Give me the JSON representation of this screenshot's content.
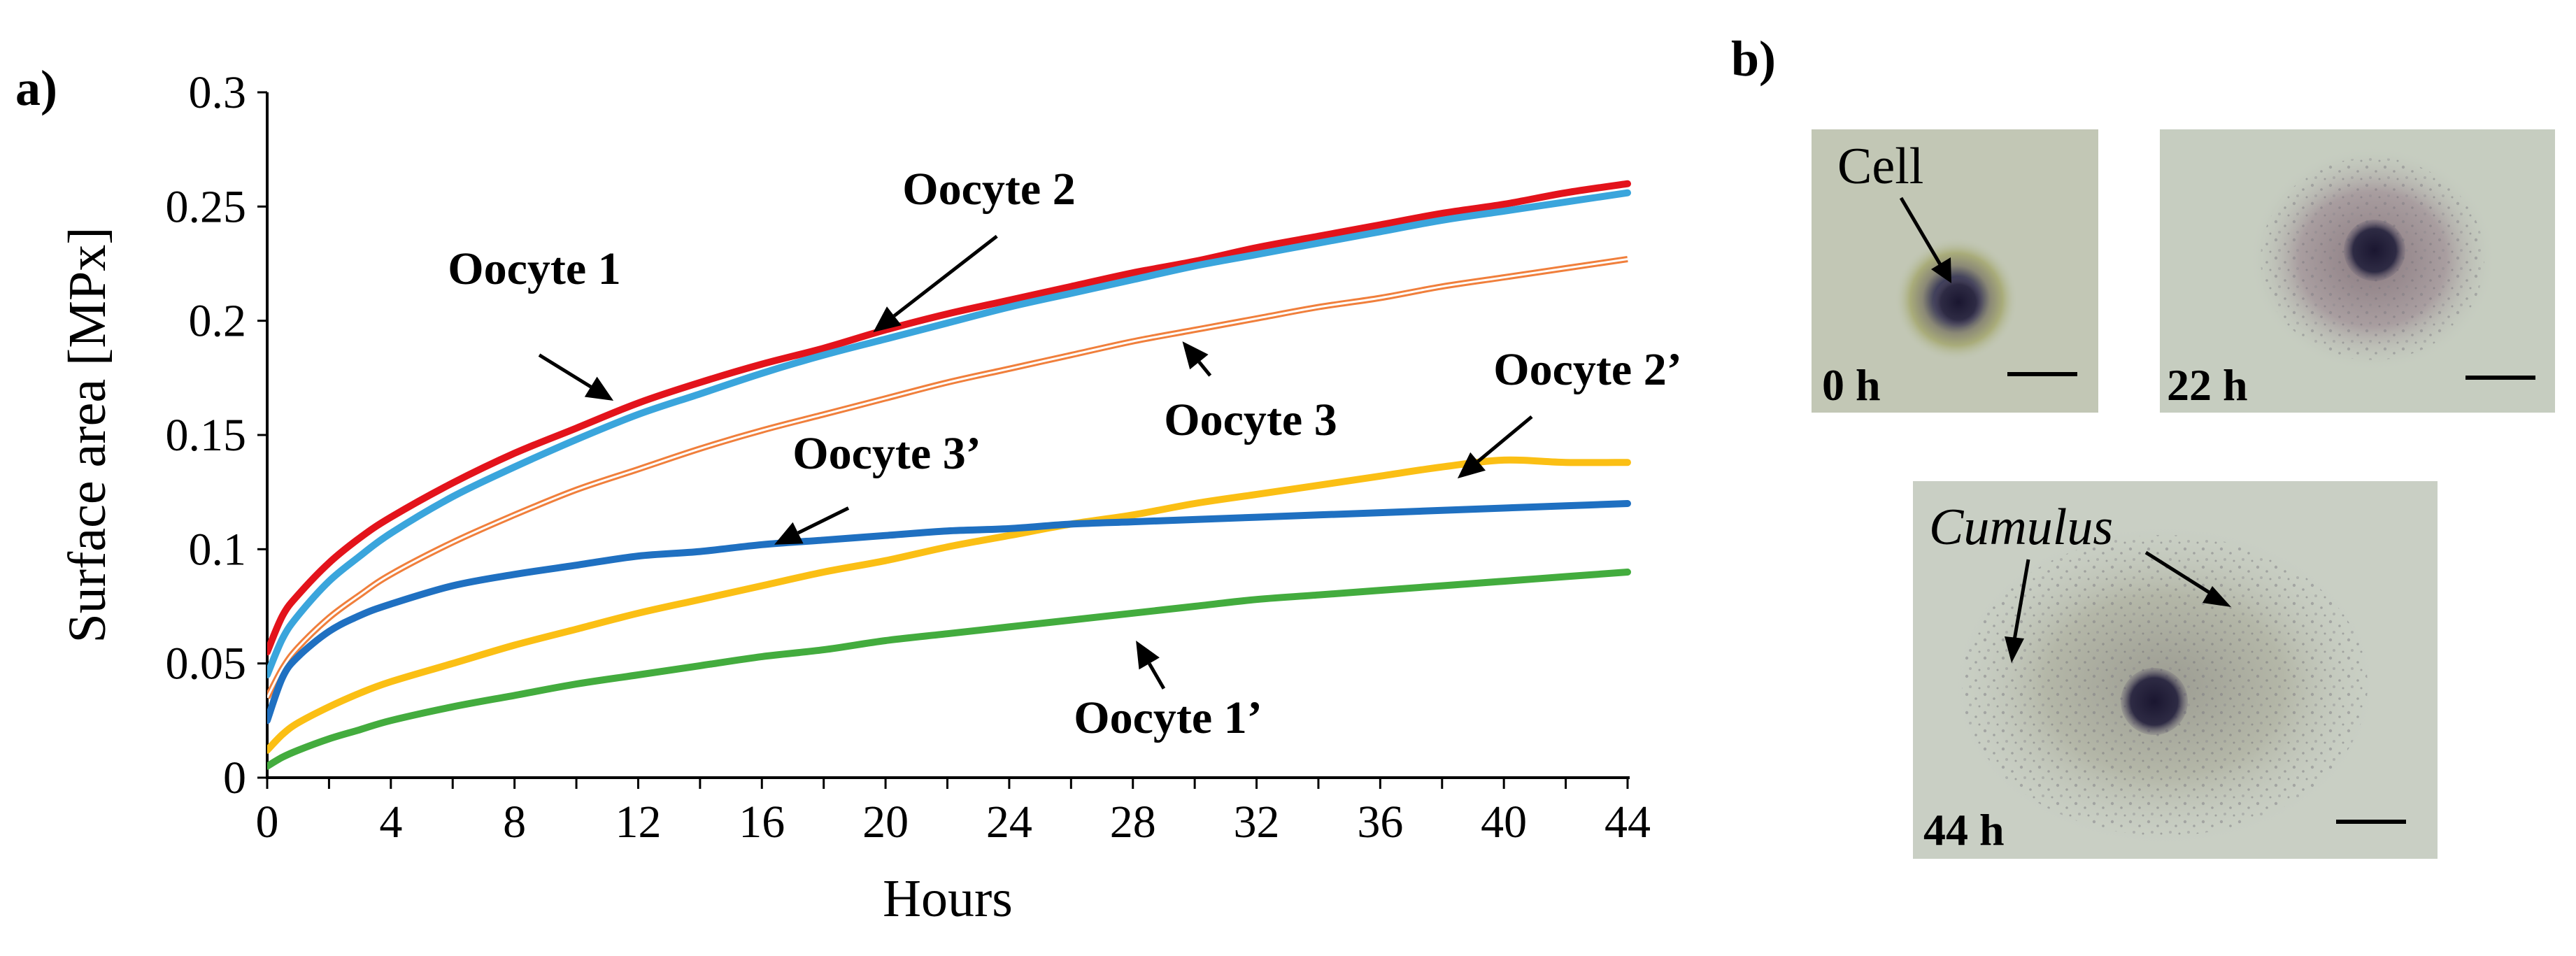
{
  "chart_data": {
    "type": "line",
    "panel_label": "a)",
    "xlabel": "Hours",
    "ylabel": "Surface area [MPx]",
    "xlim": [
      0,
      44
    ],
    "ylim": [
      0,
      0.3
    ],
    "x_ticks": [
      0,
      4,
      8,
      12,
      16,
      20,
      24,
      28,
      32,
      36,
      40,
      44
    ],
    "x_tick_labels": [
      "0",
      "4",
      "8",
      "12",
      "16",
      "20",
      "24",
      "28",
      "32",
      "36",
      "40",
      "44"
    ],
    "y_ticks": [
      0,
      0.05,
      0.1,
      0.15,
      0.2,
      0.25,
      0.3
    ],
    "y_tick_labels": [
      "0",
      "0.05",
      "0.1",
      "0.15",
      "0.2",
      "0.25",
      "0.3"
    ],
    "x": [
      0,
      0.5,
      1,
      2,
      3,
      4,
      6,
      8,
      10,
      12,
      14,
      16,
      18,
      20,
      22,
      24,
      26,
      28,
      30,
      32,
      34,
      36,
      38,
      40,
      42,
      44
    ],
    "series": [
      {
        "name": "Oocyte 1",
        "color": "#e3131b",
        "style": "solid",
        "values": [
          0.055,
          0.071,
          0.08,
          0.094,
          0.105,
          0.114,
          0.129,
          0.142,
          0.153,
          0.164,
          0.173,
          0.181,
          0.188,
          0.196,
          0.203,
          0.209,
          0.215,
          0.221,
          0.226,
          0.232,
          0.237,
          0.242,
          0.247,
          0.251,
          0.256,
          0.26
        ]
      },
      {
        "name": "Oocyte 2",
        "color": "#3aa5dc",
        "style": "solid",
        "values": [
          0.045,
          0.061,
          0.071,
          0.086,
          0.097,
          0.107,
          0.123,
          0.136,
          0.148,
          0.159,
          0.168,
          0.177,
          0.185,
          0.192,
          0.199,
          0.206,
          0.212,
          0.218,
          0.224,
          0.229,
          0.234,
          0.239,
          0.244,
          0.248,
          0.252,
          0.256
        ]
      },
      {
        "name": "Oocyte 3",
        "color": "#f07f3c",
        "style": "double",
        "values": [
          0.035,
          0.048,
          0.057,
          0.07,
          0.08,
          0.089,
          0.103,
          0.115,
          0.126,
          0.135,
          0.144,
          0.152,
          0.159,
          0.166,
          0.173,
          0.179,
          0.185,
          0.191,
          0.196,
          0.201,
          0.206,
          0.21,
          0.215,
          0.219,
          0.223,
          0.227
        ]
      },
      {
        "name": "Oocyte 2’",
        "color": "#fbbf14",
        "style": "solid",
        "values": [
          0.012,
          0.019,
          0.024,
          0.031,
          0.037,
          0.042,
          0.05,
          0.058,
          0.065,
          0.072,
          0.078,
          0.084,
          0.09,
          0.095,
          0.101,
          0.106,
          0.111,
          0.115,
          0.12,
          0.124,
          0.128,
          0.132,
          0.136,
          0.139,
          0.138,
          0.138
        ]
      },
      {
        "name": "Oocyte 3’",
        "color": "#1f70c1",
        "style": "solid",
        "values": [
          0.025,
          0.044,
          0.053,
          0.064,
          0.071,
          0.076,
          0.084,
          0.089,
          0.093,
          0.097,
          0.099,
          0.102,
          0.104,
          0.106,
          0.108,
          0.109,
          0.111,
          0.112,
          0.113,
          0.114,
          0.115,
          0.116,
          0.117,
          0.118,
          0.119,
          0.12
        ]
      },
      {
        "name": "Oocyte 1’",
        "color": "#43ac3e",
        "style": "solid",
        "values": [
          0.005,
          0.009,
          0.012,
          0.017,
          0.021,
          0.025,
          0.031,
          0.036,
          0.041,
          0.045,
          0.049,
          0.053,
          0.056,
          0.06,
          0.063,
          0.066,
          0.069,
          0.072,
          0.075,
          0.078,
          0.08,
          0.082,
          0.084,
          0.086,
          0.088,
          0.09
        ]
      }
    ],
    "annotations": [
      {
        "text": "Oocyte 1",
        "arrow_from": [
          8.8,
          0.185
        ],
        "arrow_to": [
          11.2,
          0.165
        ]
      },
      {
        "text": "Oocyte 2",
        "arrow_from": [
          23.6,
          0.237
        ],
        "arrow_to": [
          19.6,
          0.195
        ]
      },
      {
        "text": "Oocyte 3",
        "arrow_from": [
          30.5,
          0.176
        ],
        "arrow_to": [
          29.6,
          0.191
        ]
      },
      {
        "text": "Oocyte 2’",
        "arrow_from": [
          40.9,
          0.158
        ],
        "arrow_to": [
          38.5,
          0.131
        ]
      },
      {
        "text": "Oocyte 3’",
        "arrow_from": [
          18.8,
          0.118
        ],
        "arrow_to": [
          16.4,
          0.102
        ]
      },
      {
        "text": "Oocyte 1’",
        "arrow_from": [
          29.0,
          0.039
        ],
        "arrow_to": [
          28.1,
          0.06
        ]
      }
    ]
  },
  "panel_b": {
    "label": "b)",
    "photos": [
      {
        "time": "0 h",
        "annotation": "Cell"
      },
      {
        "time": "22 h"
      },
      {
        "time": "44 h",
        "annotation": "Cumulus"
      }
    ]
  }
}
